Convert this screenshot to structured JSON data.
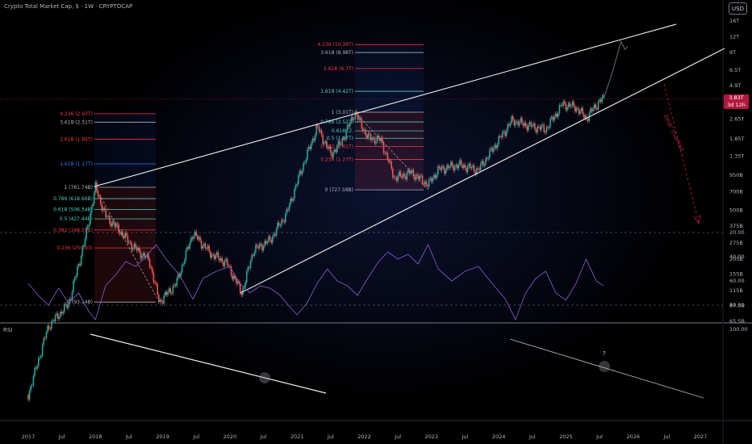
{
  "header": {
    "title": "Crypto Total Market Cap, $ · 1W · CRYPTOCAP",
    "currency_button": "USD"
  },
  "price_tag": {
    "value": "3.83T",
    "countdown": "3d 12h"
  },
  "rsi_label": "RSI",
  "annotation": "bear market...",
  "question_mark": "?",
  "colors": {
    "up": "#26a69a",
    "down": "#ef5350",
    "fib_red": "#f23645",
    "fib_teal": "#4dd0c0",
    "fib_blue": "#2979ff",
    "rsi_line": "#7e57c2",
    "trend": "#e0e0e0",
    "bear": "#b2183f"
  },
  "chart_data": [
    {
      "type": "candlestick",
      "title": "Crypto Total Market Cap, $ · 1W · CRYPTOCAP",
      "y_scale": "log",
      "y_ticks": [
        "16T",
        "12T",
        "9T",
        "6.5T",
        "4.9T",
        "2.65T",
        "1.85T",
        "1.35T",
        "950B",
        "700B",
        "500B",
        "375B",
        "275B",
        "205B",
        "155B",
        "115B",
        "87.5B",
        "65.5B"
      ],
      "x_ticks": [
        "2017",
        "Jul",
        "2018",
        "Jul",
        "2019",
        "Jul",
        "2020",
        "Jul",
        "2021",
        "Jul",
        "2022",
        "Jul",
        "2023",
        "Jul",
        "2024",
        "Jul",
        "2025",
        "Jul",
        "2026",
        "Jul",
        "2027"
      ],
      "x_tick_times": [
        2017,
        2017.5,
        2018,
        2018.5,
        2019,
        2019.5,
        2020,
        2020.5,
        2021,
        2021.5,
        2022,
        2022.5,
        2023,
        2023.5,
        2024,
        2024.5,
        2025,
        2025.5,
        2026,
        2026.5,
        2027
      ],
      "y_tick_values": [
        16000,
        12000,
        9000,
        6500,
        4900,
        2650,
        1850,
        1350,
        950,
        700,
        500,
        375,
        275,
        205,
        155,
        115,
        87.5,
        65.5
      ],
      "path": [
        [
          2017.0,
          17
        ],
        [
          2017.3,
          60
        ],
        [
          2017.6,
          90
        ],
        [
          2017.85,
          300
        ],
        [
          2018.0,
          761.74
        ],
        [
          2018.15,
          450
        ],
        [
          2018.35,
          350
        ],
        [
          2018.55,
          260
        ],
        [
          2018.8,
          200
        ],
        [
          2018.95,
          93.14
        ],
        [
          2019.2,
          130
        ],
        [
          2019.45,
          330
        ],
        [
          2019.7,
          230
        ],
        [
          2019.95,
          190
        ],
        [
          2020.18,
          110
        ],
        [
          2020.35,
          240
        ],
        [
          2020.6,
          290
        ],
        [
          2020.85,
          480
        ],
        [
          2021.05,
          1000
        ],
        [
          2021.3,
          2300
        ],
        [
          2021.5,
          1400
        ],
        [
          2021.65,
          1700
        ],
        [
          2021.86,
          3010
        ],
        [
          2022.05,
          1900
        ],
        [
          2022.25,
          1800
        ],
        [
          2022.45,
          900
        ],
        [
          2022.7,
          1000
        ],
        [
          2022.95,
          800
        ],
        [
          2023.1,
          1050
        ],
        [
          2023.4,
          1150
        ],
        [
          2023.7,
          1050
        ],
        [
          2023.95,
          1650
        ],
        [
          2024.2,
          2600
        ],
        [
          2024.45,
          2350
        ],
        [
          2024.7,
          2200
        ],
        [
          2024.95,
          3500
        ],
        [
          2025.15,
          3300
        ],
        [
          2025.3,
          2700
        ],
        [
          2025.5,
          3700
        ],
        [
          2025.56,
          3830
        ]
      ],
      "projection": [
        [
          2025.56,
          3830
        ],
        [
          2025.7,
          6500
        ],
        [
          2025.82,
          11000
        ],
        [
          2025.88,
          9500
        ],
        [
          2025.92,
          10100
        ]
      ],
      "fib_levels_2018": [
        {
          "label": "4.236 (2.93T)",
          "value": 2930,
          "color": "#f23645"
        },
        {
          "label": "3.618 (2.51T)",
          "value": 2510,
          "color": "#b2b5be"
        },
        {
          "label": "2.618 (1.84T)",
          "value": 1840,
          "color": "#f23645"
        },
        {
          "label": "1.618 (1.17T)",
          "value": 1170,
          "color": "#2979ff"
        },
        {
          "label": "1 (761.74B)",
          "value": 761.74,
          "color": "#b2b5be"
        },
        {
          "label": "0.786 (618.66B)",
          "value": 618.66,
          "color": "#4dd0c0"
        },
        {
          "label": "0.618 (506.34B)",
          "value": 506.34,
          "color": "#4dd0c0"
        },
        {
          "label": "0.5 (427.44B)",
          "value": 427.44,
          "color": "#4dd0c0"
        },
        {
          "label": "0.382 (348.55B)",
          "value": 348.55,
          "color": "#f23645"
        },
        {
          "label": "0.236 (250.93)",
          "value": 250.93,
          "color": "#f23645"
        },
        {
          "label": "0 (93.14B)",
          "value": 93.14,
          "color": "#b2b5be"
        }
      ],
      "fib_levels_2022": [
        {
          "label": "4.236 (10.39T)",
          "value": 10390,
          "color": "#f23645"
        },
        {
          "label": "3.618 (8.98T)",
          "value": 8980,
          "color": "#b2b5be"
        },
        {
          "label": "2.618 (6.7T)",
          "value": 6700,
          "color": "#f23645"
        },
        {
          "label": "1.618 (4.42T)",
          "value": 4420,
          "color": "#4dd0c0"
        },
        {
          "label": "1 (3.01T)",
          "value": 3010,
          "color": "#b2b5be"
        },
        {
          "label": "0.786 (2.52T)",
          "value": 2520,
          "color": "#4dd0c0"
        },
        {
          "label": "0.618 (2.",
          "value": 2140,
          "color": "#4dd0c0"
        },
        {
          "label": "0.5 (1.87T)",
          "value": 1870,
          "color": "#4dd0c0"
        },
        {
          "label": "0.382 (1.61T)",
          "value": 1610,
          "color": "#f23645"
        },
        {
          "label": "0.236 (1.27T)",
          "value": 1270,
          "color": "#f23645"
        },
        {
          "label": "0 (727.58B)",
          "value": 727.58,
          "color": "#b2b5be"
        }
      ]
    },
    {
      "type": "line",
      "name": "RSI",
      "y_ticks": [
        "100.00",
        "80.00",
        "60.00",
        "40.00",
        "20.00"
      ],
      "y_tick_values": [
        100,
        80,
        60,
        40,
        20
      ],
      "ylim": [
        20,
        100
      ],
      "x": [
        2017.0,
        2017.15,
        2017.3,
        2017.45,
        2017.6,
        2017.75,
        2017.9,
        2018.0,
        2018.15,
        2018.3,
        2018.45,
        2018.6,
        2018.75,
        2018.9,
        2019.05,
        2019.25,
        2019.45,
        2019.6,
        2019.8,
        2020.0,
        2020.15,
        2020.3,
        2020.45,
        2020.6,
        2020.75,
        2020.9,
        2021.0,
        2021.15,
        2021.3,
        2021.45,
        2021.6,
        2021.75,
        2021.9,
        2022.05,
        2022.2,
        2022.35,
        2022.5,
        2022.65,
        2022.8,
        2022.95,
        2023.1,
        2023.3,
        2023.5,
        2023.7,
        2023.9,
        2024.1,
        2024.25,
        2024.4,
        2024.55,
        2024.7,
        2024.85,
        2025.0,
        2025.15,
        2025.3,
        2025.45,
        2025.56
      ],
      "y": [
        62,
        72,
        80,
        66,
        78,
        70,
        85,
        92,
        64,
        55,
        44,
        48,
        40,
        30,
        42,
        55,
        75,
        58,
        52,
        48,
        62,
        70,
        64,
        66,
        72,
        82,
        88,
        78,
        62,
        50,
        60,
        64,
        72,
        58,
        45,
        36,
        42,
        38,
        46,
        30,
        50,
        60,
        52,
        48,
        62,
        75,
        92,
        70,
        58,
        52,
        70,
        76,
        62,
        42,
        60,
        64
      ]
    }
  ]
}
